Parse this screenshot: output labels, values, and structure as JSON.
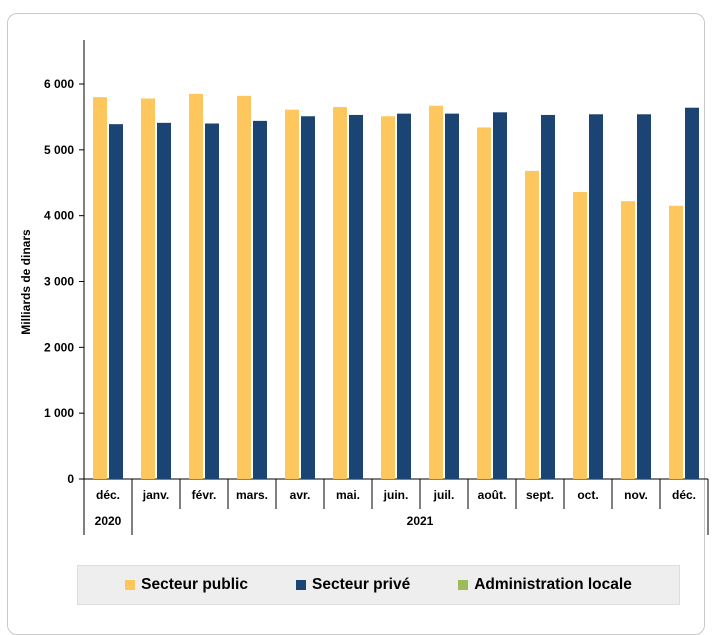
{
  "chart_data": {
    "type": "bar",
    "ylabel": "Milliards de dinars",
    "ylim": [
      0,
      6000
    ],
    "yticks": [
      "0",
      "1 000",
      "2 000",
      "3 000",
      "4 000",
      "5 000",
      "6 000"
    ],
    "categories": [
      "déc.",
      "janv.",
      "févr.",
      "mars.",
      "avr.",
      "mai.",
      "juin.",
      "juil.",
      "août.",
      "sept.",
      "oct.",
      "nov.",
      "déc."
    ],
    "year_groups": [
      {
        "label": "2020",
        "span": 1
      },
      {
        "label": "2021",
        "span": 12
      }
    ],
    "series": [
      {
        "name": "Secteur public",
        "color": "#fdc75d",
        "values": [
          5800,
          5780,
          5850,
          5820,
          5610,
          5650,
          5510,
          5670,
          5340,
          4680,
          4360,
          4220,
          4150
        ]
      },
      {
        "name": "Secteur privé",
        "color": "#1b4472",
        "values": [
          5390,
          5410,
          5400,
          5440,
          5510,
          5530,
          5550,
          5550,
          5570,
          5530,
          5540,
          5540,
          5640
        ]
      },
      {
        "name": "Administration locale",
        "color": "#9cbb59",
        "values": [
          0,
          0,
          0,
          0,
          0,
          0,
          0,
          0,
          0,
          0,
          0,
          0,
          0
        ]
      }
    ],
    "grid": false,
    "legend_position": "bottom"
  }
}
